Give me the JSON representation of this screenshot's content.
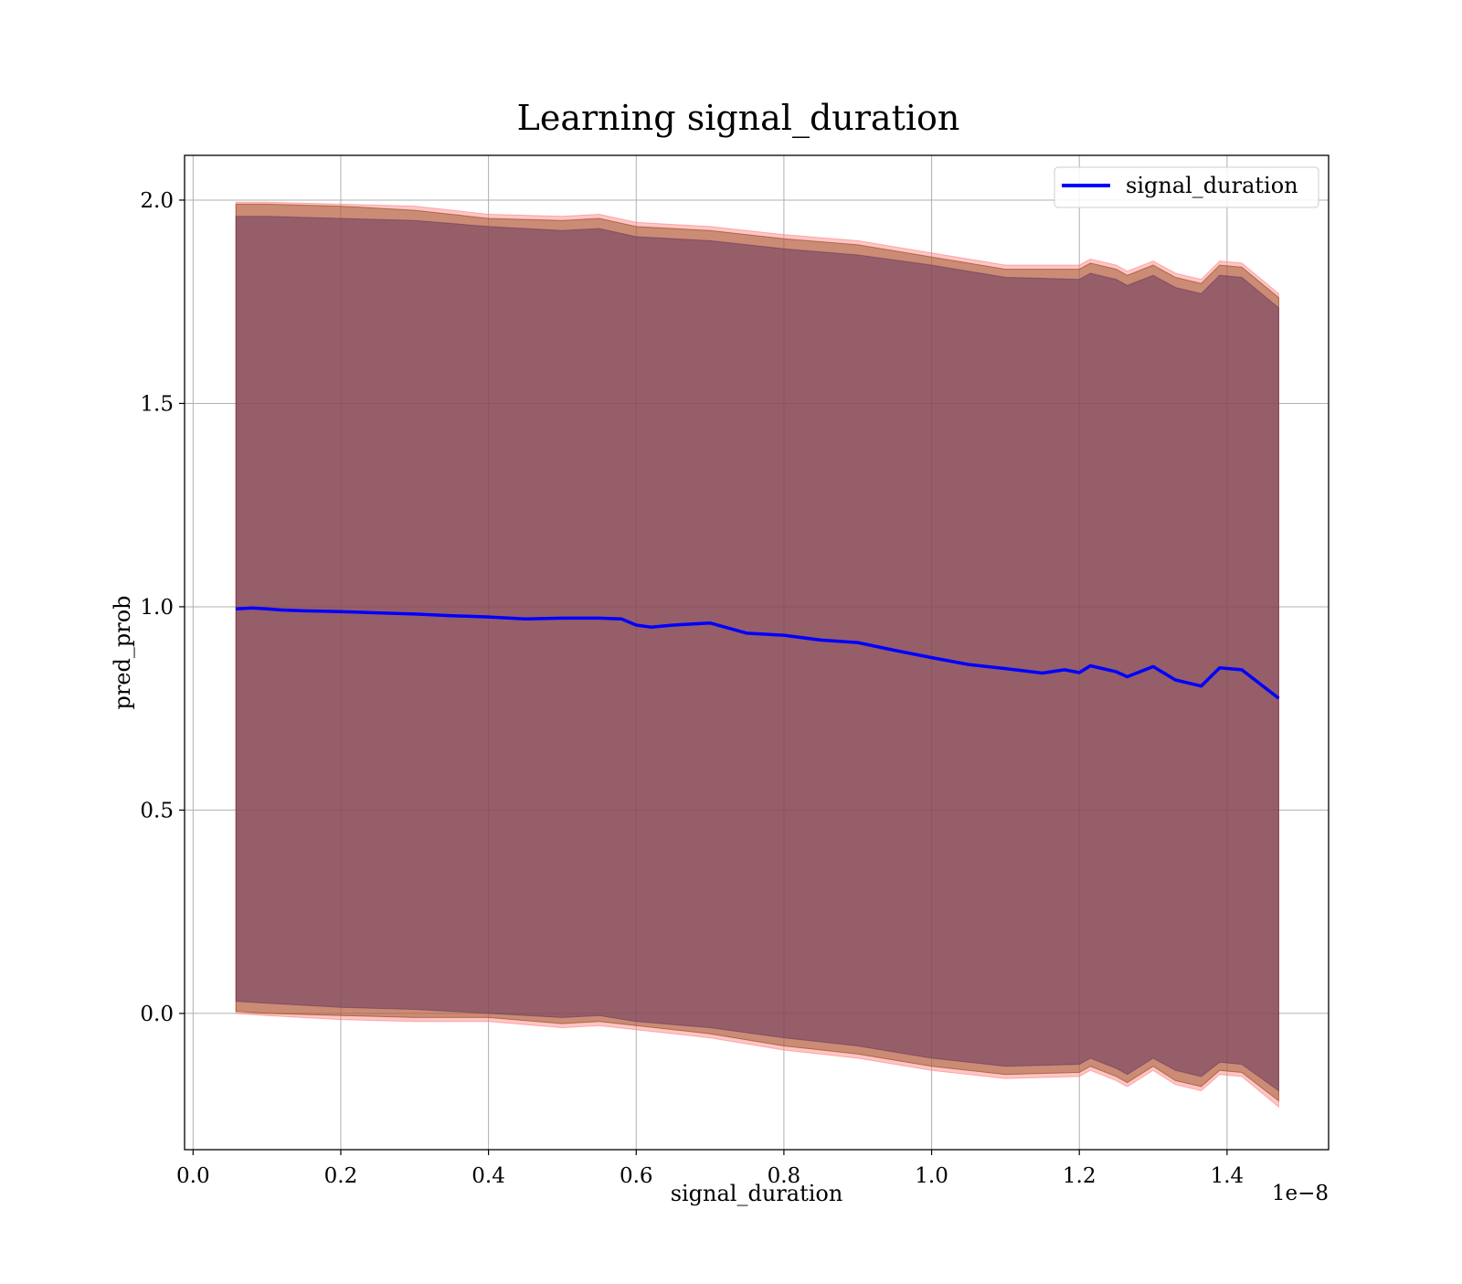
{
  "chart_data": {
    "type": "line",
    "title": "Learning signal_duration",
    "xlabel": "signal_duration",
    "ylabel": "pred_prob",
    "x_offset_text": "1e−8",
    "x_scale_exponent": -8,
    "xlim": [
      -0.0115,
      1.5375
    ],
    "ylim": [
      -0.335,
      2.11
    ],
    "xticks": [
      0.0,
      0.2,
      0.4,
      0.6,
      0.8,
      1.0,
      1.2,
      1.4
    ],
    "xtick_labels": [
      "0.0",
      "0.2",
      "0.4",
      "0.6",
      "0.8",
      "1.0",
      "1.2",
      "1.4"
    ],
    "yticks": [
      0.0,
      0.5,
      1.0,
      1.5,
      2.0
    ],
    "ytick_labels": [
      "0.0",
      "0.5",
      "1.0",
      "1.5",
      "2.0"
    ],
    "grid": true,
    "legend_position": "upper right",
    "series": [
      {
        "name": "signal_duration",
        "color": "#0000ff",
        "x": [
          0.058,
          0.08,
          0.1,
          0.12,
          0.15,
          0.2,
          0.25,
          0.3,
          0.35,
          0.4,
          0.45,
          0.5,
          0.55,
          0.58,
          0.6,
          0.62,
          0.65,
          0.7,
          0.75,
          0.8,
          0.85,
          0.9,
          0.95,
          1.0,
          1.05,
          1.1,
          1.15,
          1.18,
          1.2,
          1.215,
          1.25,
          1.265,
          1.3,
          1.33,
          1.365,
          1.39,
          1.42,
          1.47
        ],
        "y": [
          0.995,
          0.997,
          0.995,
          0.992,
          0.99,
          0.988,
          0.985,
          0.982,
          0.978,
          0.975,
          0.97,
          0.972,
          0.972,
          0.97,
          0.955,
          0.95,
          0.955,
          0.96,
          0.935,
          0.93,
          0.918,
          0.912,
          0.893,
          0.875,
          0.858,
          0.848,
          0.837,
          0.845,
          0.838,
          0.855,
          0.84,
          0.828,
          0.853,
          0.82,
          0.805,
          0.85,
          0.845,
          0.775
        ]
      }
    ],
    "bands": [
      {
        "color": "#ff7f7f",
        "opacity": 0.45,
        "x": [
          0.058,
          0.1,
          0.2,
          0.3,
          0.4,
          0.5,
          0.55,
          0.6,
          0.7,
          0.8,
          0.9,
          1.0,
          1.1,
          1.2,
          1.215,
          1.25,
          1.265,
          1.3,
          1.33,
          1.365,
          1.39,
          1.42,
          1.47
        ],
        "lower": [
          0.0,
          -0.005,
          -0.015,
          -0.02,
          -0.02,
          -0.035,
          -0.03,
          -0.04,
          -0.06,
          -0.09,
          -0.11,
          -0.14,
          -0.16,
          -0.155,
          -0.14,
          -0.165,
          -0.18,
          -0.14,
          -0.175,
          -0.19,
          -0.15,
          -0.155,
          -0.23
        ],
        "upper": [
          1.995,
          1.995,
          1.99,
          1.985,
          1.965,
          1.96,
          1.965,
          1.945,
          1.935,
          1.915,
          1.9,
          1.87,
          1.84,
          1.84,
          1.855,
          1.84,
          1.825,
          1.85,
          1.82,
          1.805,
          1.85,
          1.845,
          1.77
        ]
      },
      {
        "color": "#8b4513",
        "opacity": 0.45,
        "x": [
          0.058,
          0.1,
          0.2,
          0.3,
          0.4,
          0.5,
          0.55,
          0.6,
          0.7,
          0.8,
          0.9,
          1.0,
          1.1,
          1.2,
          1.215,
          1.25,
          1.265,
          1.3,
          1.33,
          1.365,
          1.39,
          1.42,
          1.47
        ],
        "lower": [
          0.005,
          0.0,
          -0.005,
          -0.01,
          -0.01,
          -0.025,
          -0.02,
          -0.03,
          -0.05,
          -0.08,
          -0.1,
          -0.13,
          -0.15,
          -0.145,
          -0.13,
          -0.155,
          -0.17,
          -0.13,
          -0.165,
          -0.18,
          -0.14,
          -0.145,
          -0.215
        ],
        "upper": [
          1.99,
          1.99,
          1.985,
          1.975,
          1.955,
          1.95,
          1.955,
          1.935,
          1.925,
          1.905,
          1.89,
          1.86,
          1.83,
          1.83,
          1.845,
          1.83,
          1.815,
          1.84,
          1.81,
          1.795,
          1.84,
          1.835,
          1.76
        ]
      },
      {
        "color": "#6a3a5e",
        "opacity": 0.55,
        "x": [
          0.058,
          0.1,
          0.2,
          0.3,
          0.4,
          0.5,
          0.55,
          0.6,
          0.7,
          0.8,
          0.9,
          1.0,
          1.1,
          1.2,
          1.215,
          1.25,
          1.265,
          1.3,
          1.33,
          1.365,
          1.39,
          1.42,
          1.47
        ],
        "lower": [
          0.03,
          0.025,
          0.015,
          0.01,
          0.0,
          -0.01,
          -0.005,
          -0.02,
          -0.035,
          -0.06,
          -0.08,
          -0.11,
          -0.13,
          -0.125,
          -0.11,
          -0.135,
          -0.15,
          -0.11,
          -0.14,
          -0.155,
          -0.12,
          -0.125,
          -0.19
        ],
        "upper": [
          1.96,
          1.96,
          1.955,
          1.95,
          1.935,
          1.925,
          1.93,
          1.91,
          1.9,
          1.88,
          1.865,
          1.84,
          1.81,
          1.805,
          1.82,
          1.805,
          1.79,
          1.815,
          1.785,
          1.77,
          1.815,
          1.81,
          1.735
        ]
      }
    ]
  }
}
